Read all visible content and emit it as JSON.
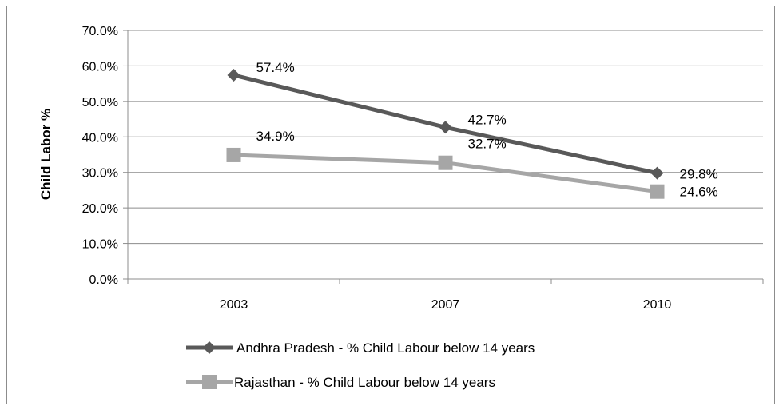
{
  "chart_data": {
    "type": "line",
    "title": "",
    "xlabel": "",
    "ylabel": "Child Labor %",
    "categories": [
      "2003",
      "2007",
      "2010"
    ],
    "ylim": [
      0,
      70
    ],
    "y_ticks": [
      "0.0%",
      "10.0%",
      "20.0%",
      "30.0%",
      "40.0%",
      "50.0%",
      "60.0%",
      "70.0%"
    ],
    "grid": true,
    "legend_position": "bottom",
    "series": [
      {
        "name": "Andhra Pradesh - % Child Labour below 14 years",
        "values": [
          57.4,
          42.7,
          29.8
        ],
        "labels": [
          "57.4%",
          "42.7%",
          "29.8%"
        ],
        "color": "#595959",
        "marker": "diamond"
      },
      {
        "name": "Rajasthan - % Child Labour below 14 years",
        "values": [
          34.9,
          32.7,
          24.6
        ],
        "labels": [
          "34.9%",
          "32.7%",
          "24.6%"
        ],
        "color": "#a6a6a6",
        "marker": "square"
      }
    ]
  }
}
